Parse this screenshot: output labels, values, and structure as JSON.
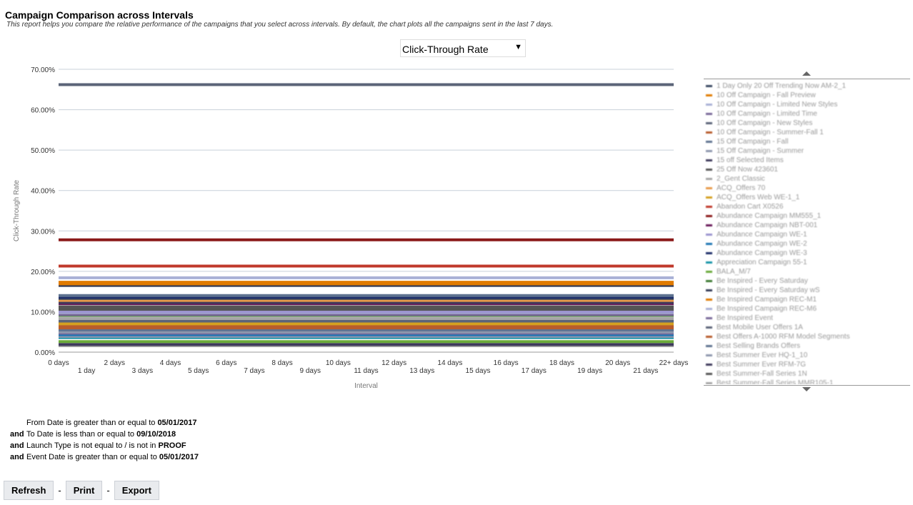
{
  "header": {
    "title": "Campaign Comparison across Intervals",
    "description": "This report helps you compare the relative performance of the campaigns that you select across intervals. By default, the chart plots all the campaigns sent in the last 7 days."
  },
  "metric_select": {
    "value": "Click-Through Rate"
  },
  "chart_data": {
    "type": "line",
    "title": "",
    "xlabel": "Interval",
    "ylabel": "Click-Through Rate",
    "ylim": [
      0,
      70
    ],
    "yticks": [
      "0.00%",
      "10.00%",
      "20.00%",
      "30.00%",
      "40.00%",
      "50.00%",
      "60.00%",
      "70.00%"
    ],
    "categories": [
      "0 days",
      "1 day",
      "2 days",
      "3 days",
      "4 days",
      "5 days",
      "6 days",
      "7 days",
      "8 days",
      "9 days",
      "10 days",
      "11 days",
      "12 days",
      "13 days",
      "14 days",
      "15 days",
      "16 days",
      "17 days",
      "18 days",
      "19 days",
      "20 days",
      "21 days",
      "22+ days"
    ],
    "grid": true,
    "legend_position": "right",
    "series": [
      {
        "name": "1 Day Only 20 Off Trending Now AM-2_1",
        "color": "#3b4a63",
        "value": 13.3
      },
      {
        "name": "10 Off Campaign - Fall Preview",
        "color": "#e07b00",
        "value": 17.3
      },
      {
        "name": "10 Off Campaign - Limited New Styles",
        "color": "#a9b1d6",
        "value": 18.4
      },
      {
        "name": "10 Off Campaign - Limited Time",
        "color": "#7a6a9a",
        "value": 9.3
      },
      {
        "name": "10 Off Campaign - New Styles",
        "color": "#5b6478",
        "value": 66.2
      },
      {
        "name": "10 Off Campaign - Summer-Fall 1",
        "color": "#b85c2c",
        "value": 6.4
      },
      {
        "name": "15 Off Campaign - Fall",
        "color": "#5f7390",
        "value": 14.0
      },
      {
        "name": "15 Off Campaign - Summer",
        "color": "#8e97ad",
        "value": 5.0
      },
      {
        "name": "15 off Selected Items",
        "color": "#3f3a5c",
        "value": 12.3
      },
      {
        "name": "25 Off Now 423601",
        "color": "#555555",
        "value": 11.2
      },
      {
        "name": "2_Gent Classic",
        "color": "#a6a6a6",
        "value": 8.3
      },
      {
        "name": "ACQ_Offers 70",
        "color": "#e89a4a",
        "value": 12.8
      },
      {
        "name": "ACQ_Offers Web WE-1_1",
        "color": "#d4a020",
        "value": 7.0
      },
      {
        "name": "Abandon Cart X0526",
        "color": "#c0392b",
        "value": 21.3
      },
      {
        "name": "Abundance Campaign MM555_1",
        "color": "#8b1a1a",
        "value": 27.8
      },
      {
        "name": "Abundance Campaign NBT-001",
        "color": "#6a1b5a",
        "value": 12.0
      },
      {
        "name": "Abundance Campaign WE-1",
        "color": "#9b94d0",
        "value": 10.0
      },
      {
        "name": "Abundance Campaign WE-2",
        "color": "#1f77b4",
        "value": 4.3
      },
      {
        "name": "Abundance Campaign WE-3",
        "color": "#1f2f6a",
        "value": 13.6
      },
      {
        "name": "Appreciation Campaign 55-1",
        "color": "#1794a8",
        "value": 3.6
      },
      {
        "name": "BALA_M/7",
        "color": "#6aaa3a",
        "value": 2.6
      },
      {
        "name": "Be Inspired - Every Saturday",
        "color": "#3d7a32",
        "value": 9.1
      },
      {
        "name": "Be Inspired - Every Saturday wS",
        "color": "#333a55",
        "value": 16.5
      },
      {
        "name": "Be Inspired Campaign REC-M1",
        "color": "#e07b00",
        "value": 16.9
      },
      {
        "name": "Be Inspired Campaign REC-M6",
        "color": "#a9b1d6",
        "value": 9.8
      },
      {
        "name": "Be Inspired Event",
        "color": "#7a6a9a",
        "value": 4.7
      },
      {
        "name": "Best Mobile User Offers 1A",
        "color": "#5b6478",
        "value": 7.7
      },
      {
        "name": "Best Offers A-1000 RFM Model Segments",
        "color": "#b85c2c",
        "value": 6.0
      },
      {
        "name": "Best Selling Brands Offers",
        "color": "#5f7390",
        "value": 5.5
      },
      {
        "name": "Best Summer Ever HQ-1_10",
        "color": "#8e97ad",
        "value": 3.9
      },
      {
        "name": "Best Summer Ever RFM-7G",
        "color": "#3f3a5c",
        "value": 1.9
      },
      {
        "name": "Best Summer-Fall Series 1N",
        "color": "#555555",
        "value": 10.6
      },
      {
        "name": "Best Summer-Fall Series MMR105-1",
        "color": "#a6a6a6",
        "value": 1.6
      }
    ]
  },
  "filters": [
    {
      "prefix": "",
      "text": "From Date is greater than or equal to ",
      "value": "05/01/2017"
    },
    {
      "prefix": "and",
      "text": "To Date is less than or equal to ",
      "value": "09/10/2018"
    },
    {
      "prefix": "and",
      "text": "Launch Type is not equal to / is not in ",
      "value": "PROOF"
    },
    {
      "prefix": "and",
      "text": "Event Date is greater than or equal to ",
      "value": "05/01/2017"
    }
  ],
  "buttons": {
    "refresh": "Refresh",
    "print": "Print",
    "export": "Export",
    "separator": "-"
  }
}
